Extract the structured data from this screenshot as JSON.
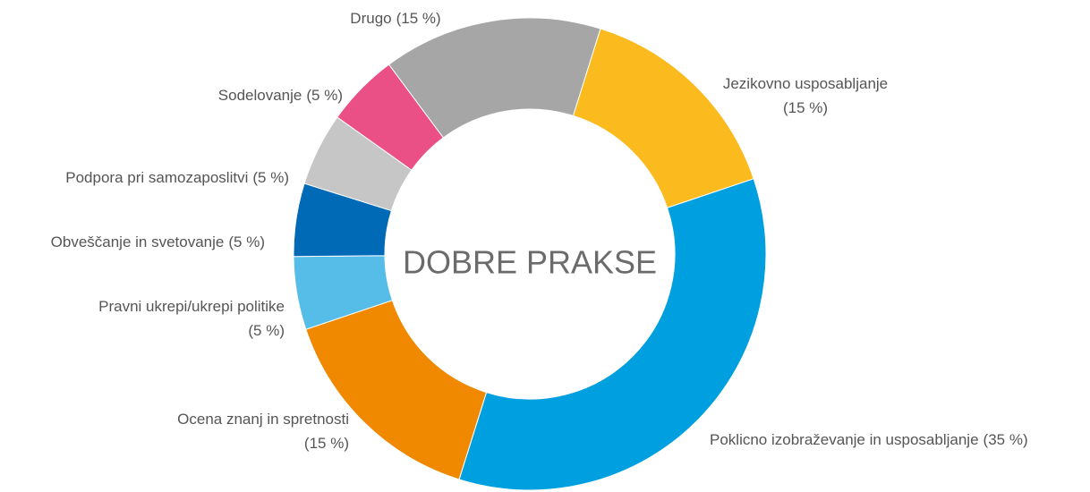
{
  "chart_data": {
    "type": "donut",
    "center_label": "DOBRE PRAKSE",
    "categories": [
      "Jezikovno usposabljanje",
      "Poklicno izobraževanje in usposabljanje",
      "Ocena znanj in spretnosti",
      "Pravni ukrepi/ukrepi politike",
      "Obveščanje in svetovanje",
      "Podpora pri samozaposlitvi",
      "Sodelovanje",
      "Drugo"
    ],
    "values": [
      15,
      35,
      15,
      5,
      5,
      5,
      5,
      15
    ],
    "value_labels": [
      "(15 %)",
      "(35 %)",
      "(15 %)",
      "(5 %)",
      "(5 %)",
      "(5 %)",
      "(5 %)",
      "(15 %)"
    ],
    "colors": [
      "#fbba1e",
      "#00a0e0",
      "#f08800",
      "#56bde8",
      "#006ab6",
      "#c6c6c6",
      "#ea4f86",
      "#a6a6a6"
    ]
  }
}
